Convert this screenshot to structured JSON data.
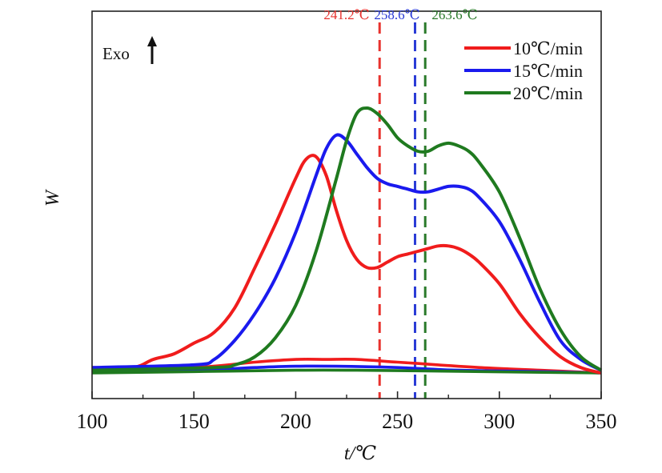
{
  "chart_data": {
    "type": "line",
    "xlabel": "t/℃",
    "ylabel": "W",
    "xlim": [
      100,
      350
    ],
    "x_ticks": [
      "100",
      "150",
      "200",
      "250",
      "300",
      "350"
    ],
    "annotation": "Exo",
    "grid": false,
    "legend_placement": "top-right",
    "vlines": [
      {
        "x": 241.2,
        "label": "241.2℃",
        "color": "#e8322e"
      },
      {
        "x": 258.6,
        "label": "258.6℃",
        "color": "#2a3bd6"
      },
      {
        "x": 263.6,
        "label": "263.6℃",
        "color": "#2a7a2a"
      }
    ],
    "series": [
      {
        "name": "10℃/min",
        "color": "#f01c1c",
        "x": [
          100,
          120,
          130,
          140,
          150,
          160,
          170,
          180,
          190,
          200,
          205,
          210,
          215,
          220,
          225,
          230,
          235,
          240,
          245,
          250,
          255,
          260,
          265,
          270,
          275,
          280,
          285,
          290,
          300,
          310,
          320,
          330,
          340,
          350
        ],
        "y": [
          0.02,
          0.02,
          0.05,
          0.07,
          0.11,
          0.15,
          0.24,
          0.39,
          0.55,
          0.72,
          0.79,
          0.8,
          0.73,
          0.6,
          0.49,
          0.42,
          0.39,
          0.39,
          0.41,
          0.43,
          0.44,
          0.45,
          0.46,
          0.47,
          0.47,
          0.46,
          0.44,
          0.41,
          0.33,
          0.22,
          0.13,
          0.06,
          0.02,
          0.0
        ]
      },
      {
        "name": "15℃/min",
        "color": "#1a1aee",
        "x": [
          100,
          150,
          160,
          170,
          180,
          190,
          200,
          210,
          215,
          220,
          225,
          230,
          235,
          240,
          245,
          250,
          255,
          260,
          265,
          270,
          275,
          280,
          285,
          290,
          300,
          310,
          320,
          330,
          340,
          350
        ],
        "y": [
          0.02,
          0.03,
          0.05,
          0.12,
          0.22,
          0.35,
          0.52,
          0.73,
          0.83,
          0.88,
          0.86,
          0.81,
          0.76,
          0.72,
          0.7,
          0.69,
          0.68,
          0.67,
          0.67,
          0.68,
          0.69,
          0.69,
          0.68,
          0.65,
          0.56,
          0.42,
          0.26,
          0.12,
          0.05,
          0.01
        ]
      },
      {
        "name": "20℃/min",
        "color": "#1f7a1f",
        "x": [
          100,
          160,
          170,
          180,
          190,
          200,
          210,
          220,
          225,
          230,
          235,
          240,
          245,
          250,
          255,
          260,
          265,
          270,
          275,
          280,
          285,
          290,
          300,
          310,
          320,
          330,
          340,
          350
        ],
        "y": [
          0.01,
          0.02,
          0.03,
          0.06,
          0.13,
          0.25,
          0.45,
          0.72,
          0.86,
          0.96,
          0.98,
          0.96,
          0.92,
          0.87,
          0.84,
          0.82,
          0.82,
          0.84,
          0.85,
          0.84,
          0.82,
          0.78,
          0.67,
          0.5,
          0.31,
          0.16,
          0.06,
          0.01
        ]
      }
    ],
    "baselines": [
      {
        "color": "#f01c1c",
        "x": [
          100,
          150,
          180,
          200,
          215,
          230,
          250,
          270,
          290,
          320,
          350
        ],
        "y": [
          0.01,
          0.02,
          0.04,
          0.05,
          0.05,
          0.05,
          0.04,
          0.03,
          0.02,
          0.01,
          0.0
        ]
      },
      {
        "color": "#1a1aee",
        "x": [
          100,
          150,
          180,
          200,
          220,
          250,
          280,
          320,
          350
        ],
        "y": [
          0.005,
          0.01,
          0.02,
          0.025,
          0.025,
          0.02,
          0.01,
          0.005,
          0.0
        ]
      },
      {
        "color": "#1f7a1f",
        "x": [
          100,
          150,
          200,
          230,
          260,
          300,
          350
        ],
        "y": [
          0.0,
          0.005,
          0.01,
          0.01,
          0.008,
          0.004,
          0.0
        ]
      }
    ]
  }
}
